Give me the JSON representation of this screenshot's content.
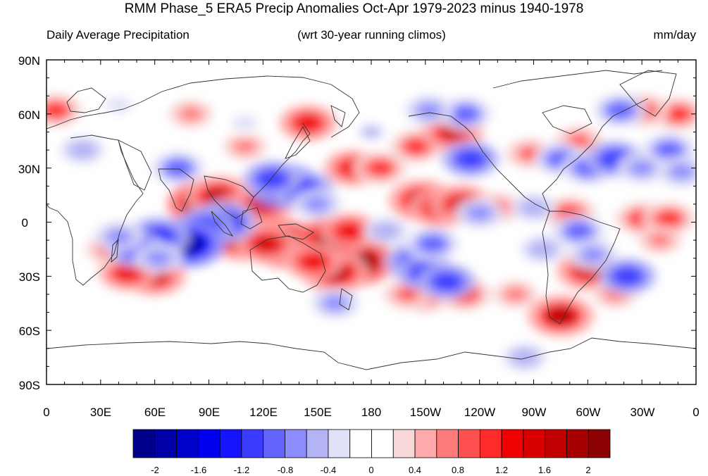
{
  "title": "RMM Phase_5 ERA5 Precip Anomalies Oct-Apr 1979-2023 minus 1940-1978",
  "subtitle_left": "Daily Average Precipitation",
  "subtitle_center": "(wrt 30-year running climos)",
  "subtitle_right": "mm/day",
  "lat_labels": [
    "90N",
    "60N",
    "30N",
    "0",
    "30S",
    "60S",
    "90S"
  ],
  "lon_labels": [
    "0",
    "30E",
    "60E",
    "90E",
    "120E",
    "150E",
    "180",
    "150W",
    "120W",
    "90W",
    "60W",
    "30W",
    "0"
  ],
  "colorbar": {
    "colors": [
      "#00008b",
      "#0000a8",
      "#0000cd",
      "#0000ee",
      "#1414ff",
      "#3c3cff",
      "#6464ff",
      "#8c8cff",
      "#b4b4f5",
      "#e1e1f8",
      "#ffffff",
      "#ffffff",
      "#f8d8d8",
      "#ffaaaa",
      "#ff7a7a",
      "#ff5050",
      "#ff2a2a",
      "#f00000",
      "#d80000",
      "#c00000",
      "#a80000",
      "#8b0000"
    ],
    "labels": [
      "-2",
      "-1.6",
      "-1.2",
      "-0.8",
      "-0.4",
      "0",
      "0.4",
      "0.8",
      "1.2",
      "1.6",
      "2"
    ]
  },
  "anomalies": [
    {
      "lon": 88,
      "lat": 10,
      "v": 2.0
    },
    {
      "lon": 96,
      "lat": 14,
      "v": 1.6
    },
    {
      "lon": 112,
      "lat": 6,
      "v": 1.8
    },
    {
      "lon": 120,
      "lat": 10,
      "v": 1.4
    },
    {
      "lon": 108,
      "lat": -10,
      "v": 1.6
    },
    {
      "lon": 132,
      "lat": -12,
      "v": 2.0
    },
    {
      "lon": 122,
      "lat": -12,
      "v": 1.4
    },
    {
      "lon": 165,
      "lat": -15,
      "v": 2.2
    },
    {
      "lon": 172,
      "lat": -22,
      "v": 2.0
    },
    {
      "lon": 158,
      "lat": -10,
      "v": 1.8
    },
    {
      "lon": 160,
      "lat": -28,
      "v": 1.6
    },
    {
      "lon": 148,
      "lat": -22,
      "v": 1.2
    },
    {
      "lon": 168,
      "lat": -5,
      "v": 1.2
    },
    {
      "lon": 208,
      "lat": 12,
      "v": 1.6
    },
    {
      "lon": 218,
      "lat": 8,
      "v": 1.4
    },
    {
      "lon": 230,
      "lat": 10,
      "v": 1.4
    },
    {
      "lon": 250,
      "lat": 8,
      "v": 0.8
    },
    {
      "lon": 290,
      "lat": 5,
      "v": 1.0
    },
    {
      "lon": 330,
      "lat": 2,
      "v": 1.0
    },
    {
      "lon": 345,
      "lat": 2,
      "v": 1.0
    },
    {
      "lon": 60,
      "lat": -30,
      "v": 1.4
    },
    {
      "lon": 45,
      "lat": -28,
      "v": 1.2
    },
    {
      "lon": 35,
      "lat": -15,
      "v": 0.8
    },
    {
      "lon": 170,
      "lat": 30,
      "v": 1.2
    },
    {
      "lon": 185,
      "lat": 30,
      "v": 1.0
    },
    {
      "lon": 145,
      "lat": 55,
      "v": 1.2
    },
    {
      "lon": 205,
      "lat": 42,
      "v": 1.0
    },
    {
      "lon": 225,
      "lat": 50,
      "v": 1.4
    },
    {
      "lon": 300,
      "lat": -27,
      "v": 1.4
    },
    {
      "lon": 285,
      "lat": -52,
      "v": 1.6
    },
    {
      "lon": 232,
      "lat": -40,
      "v": 1.0
    },
    {
      "lon": 210,
      "lat": -42,
      "v": 0.8
    },
    {
      "lon": 5,
      "lat": 62,
      "v": 1.0
    },
    {
      "lon": 350,
      "lat": 60,
      "v": 1.0
    },
    {
      "lon": 330,
      "lat": 62,
      "v": 1.0
    },
    {
      "lon": 295,
      "lat": 45,
      "v": 0.8
    },
    {
      "lon": 268,
      "lat": 38,
      "v": 0.8
    },
    {
      "lon": 340,
      "lat": -10,
      "v": 0.6
    },
    {
      "lon": 315,
      "lat": -40,
      "v": 0.6
    },
    {
      "lon": 80,
      "lat": 60,
      "v": 0.6
    },
    {
      "lon": 110,
      "lat": 42,
      "v": 0.6
    },
    {
      "lon": 200,
      "lat": -40,
      "v": 0.8
    },
    {
      "lon": 260,
      "lat": -40,
      "v": 0.6
    },
    {
      "lon": 132,
      "lat": 20,
      "v": -1.8
    },
    {
      "lon": 142,
      "lat": 18,
      "v": -1.4
    },
    {
      "lon": 125,
      "lat": 24,
      "v": -1.2
    },
    {
      "lon": 98,
      "lat": 0,
      "v": -1.6
    },
    {
      "lon": 88,
      "lat": -2,
      "v": -1.2
    },
    {
      "lon": 78,
      "lat": -12,
      "v": -2.0
    },
    {
      "lon": 62,
      "lat": -8,
      "v": -1.4
    },
    {
      "lon": 50,
      "lat": -15,
      "v": -1.2
    },
    {
      "lon": 62,
      "lat": -20,
      "v": -0.8
    },
    {
      "lon": 40,
      "lat": -8,
      "v": -0.8
    },
    {
      "lon": 73,
      "lat": 30,
      "v": -1.0
    },
    {
      "lon": 150,
      "lat": 10,
      "v": -0.8
    },
    {
      "lon": 188,
      "lat": -5,
      "v": -0.6
    },
    {
      "lon": 205,
      "lat": -22,
      "v": -1.4
    },
    {
      "lon": 210,
      "lat": -28,
      "v": -1.2
    },
    {
      "lon": 222,
      "lat": -33,
      "v": -1.2
    },
    {
      "lon": 214,
      "lat": -12,
      "v": -1.0
    },
    {
      "lon": 235,
      "lat": 35,
      "v": -1.2
    },
    {
      "lon": 232,
      "lat": 60,
      "v": -1.0
    },
    {
      "lon": 212,
      "lat": 62,
      "v": -0.8
    },
    {
      "lon": 285,
      "lat": 35,
      "v": -1.0
    },
    {
      "lon": 300,
      "lat": 30,
      "v": -1.0
    },
    {
      "lon": 315,
      "lat": 35,
      "v": -1.2
    },
    {
      "lon": 345,
      "lat": 40,
      "v": -1.0
    },
    {
      "lon": 330,
      "lat": 30,
      "v": -0.8
    },
    {
      "lon": 318,
      "lat": 62,
      "v": -1.0
    },
    {
      "lon": 352,
      "lat": 28,
      "v": -0.8
    },
    {
      "lon": 295,
      "lat": -5,
      "v": -1.0
    },
    {
      "lon": 303,
      "lat": -18,
      "v": -0.8
    },
    {
      "lon": 322,
      "lat": -30,
      "v": -1.2
    },
    {
      "lon": 275,
      "lat": -15,
      "v": -0.6
    },
    {
      "lon": 240,
      "lat": 5,
      "v": -0.8
    },
    {
      "lon": 270,
      "lat": 8,
      "v": -0.6
    },
    {
      "lon": 265,
      "lat": -75,
      "v": -0.6
    },
    {
      "lon": 180,
      "lat": 50,
      "v": -0.5
    },
    {
      "lon": 20,
      "lat": 40,
      "v": -0.6
    },
    {
      "lon": 160,
      "lat": -45,
      "v": -0.8
    },
    {
      "lon": 110,
      "lat": 55,
      "v": -0.4
    },
    {
      "lon": 40,
      "lat": 65,
      "v": -0.4
    }
  ]
}
